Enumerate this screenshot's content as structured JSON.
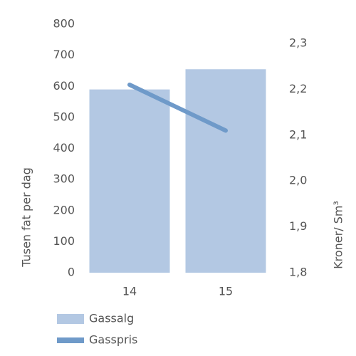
{
  "chart_data": {
    "type": "combo",
    "categories": [
      "14",
      "15"
    ],
    "series": [
      {
        "name": "Gassalg",
        "type": "bar",
        "color": "#b3c8e3",
        "values": [
          590,
          655
        ]
      },
      {
        "name": "Gasspris",
        "type": "line",
        "axis": "y2",
        "color": "#6f9ac9",
        "values": [
          2.21,
          2.11
        ]
      }
    ],
    "ylabel": "Tusen fat per dag",
    "y2label": "Kroner/ Sm³",
    "ylim": [
      0,
      800
    ],
    "yticks": [
      0,
      100,
      200,
      300,
      400,
      500,
      600,
      700,
      800
    ],
    "y2lim": [
      1.8,
      2.342
    ],
    "y2ticks": [
      {
        "value": 1.8,
        "label": "1,8"
      },
      {
        "value": 1.9,
        "label": "1,9"
      },
      {
        "value": 2.0,
        "label": "2,0"
      },
      {
        "value": 2.1,
        "label": "2,1"
      },
      {
        "value": 2.2,
        "label": "2,2"
      },
      {
        "value": 2.3,
        "label": "2,3"
      }
    ],
    "grid": false,
    "legend": "bottom-left"
  }
}
